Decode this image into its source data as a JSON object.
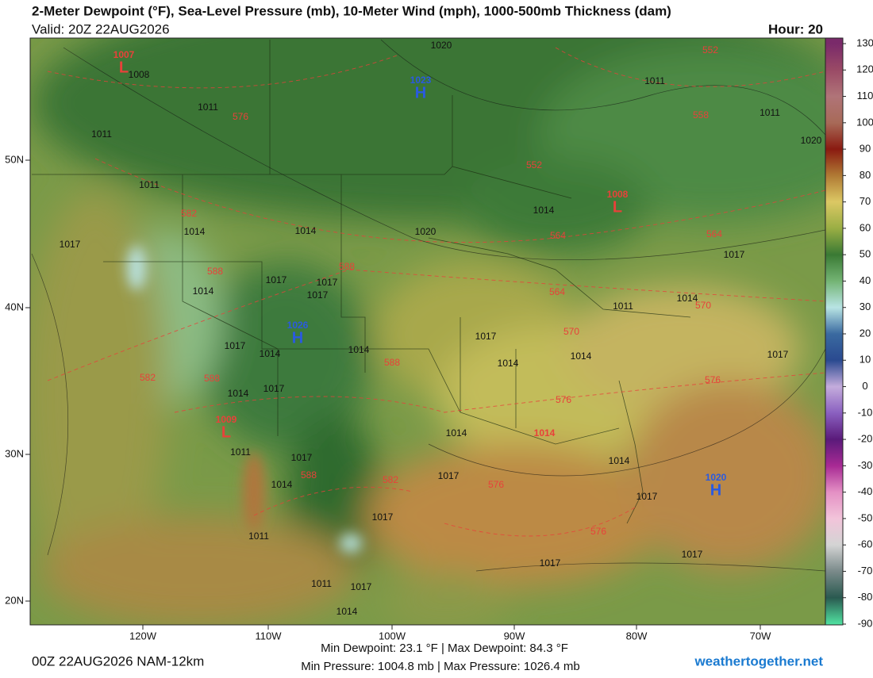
{
  "header": {
    "title": "2-Meter Dewpoint (°F), Sea-Level Pressure (mb), 10-Meter Wind (mph), 1000-500mb Thickness (dam)",
    "valid": "Valid: 20Z 22AUG2026",
    "hour": "Hour: 20"
  },
  "map": {
    "lat_labels": [
      "50N",
      "40N",
      "30N",
      "20N"
    ],
    "lon_labels": [
      "120W",
      "110W",
      "100W",
      "90W",
      "80W",
      "70W"
    ],
    "pressure_centers": [
      {
        "letter": "L",
        "value": "1007",
        "color": "#e8413a"
      },
      {
        "letter": "H",
        "value": "1023",
        "color": "#2a5ae0"
      },
      {
        "letter": "L",
        "value": "1008",
        "color": "#e8413a"
      },
      {
        "letter": "H",
        "value": "1026",
        "color": "#2a5ae0"
      },
      {
        "letter": "L",
        "value": "1009",
        "color": "#e8413a"
      },
      {
        "value": "1014",
        "color": "#e8413a"
      },
      {
        "letter": "H",
        "value": "1020",
        "color": "#2a5ae0"
      }
    ],
    "isobar_labels": [
      "1020",
      "1008",
      "1011",
      "1011",
      "1011",
      "1011",
      "1020",
      "1011",
      "1014",
      "1020",
      "1014",
      "1014",
      "1017",
      "1017",
      "1017",
      "1017",
      "1014",
      "1017",
      "1011",
      "1014",
      "1017",
      "1017",
      "1014",
      "1014",
      "1014",
      "1014",
      "1017",
      "1017",
      "1014",
      "1014",
      "1011",
      "1017",
      "1014",
      "1017",
      "1014",
      "1017",
      "1017",
      "1011",
      "1017",
      "1017",
      "1011",
      "1017",
      "1014"
    ],
    "thickness_labels": [
      "552",
      "576",
      "558",
      "552",
      "582",
      "564",
      "564",
      "588",
      "588",
      "564",
      "570",
      "570",
      "588",
      "582",
      "588",
      "576",
      "576",
      "588",
      "582",
      "576",
      "576"
    ]
  },
  "colorbar": {
    "ticks": [
      130,
      120,
      110,
      100,
      90,
      80,
      70,
      60,
      50,
      40,
      30,
      20,
      10,
      0,
      -10,
      -20,
      -30,
      -40,
      -50,
      -60,
      -70,
      -80,
      -90
    ],
    "colors": [
      "#7a2a6a",
      "#9a4a66",
      "#b07478",
      "#a86a58",
      "#8a1a10",
      "#b07a34",
      "#dcc864",
      "#9aae44",
      "#3a7a34",
      "#74b474",
      "#b8e4e4",
      "#3a6aa0",
      "#2a4a90",
      "#c4acdc",
      "#8a60c0",
      "#5a1a7a",
      "#a82a94",
      "#e490c4",
      "#f2c4da",
      "#d4d4d4",
      "#7a8a8a",
      "#2a5a50",
      "#50e0a0"
    ]
  },
  "footer": {
    "run": "00Z 22AUG2026 NAM-12km",
    "dewpoint_stats": "Min Dewpoint:  23.1 °F | Max Dewpoint:  84.3 °F",
    "pressure_stats": "Min Pressure: 1004.8 mb | Max Pressure: 1026.4 mb",
    "site": "weathertogether.net"
  }
}
